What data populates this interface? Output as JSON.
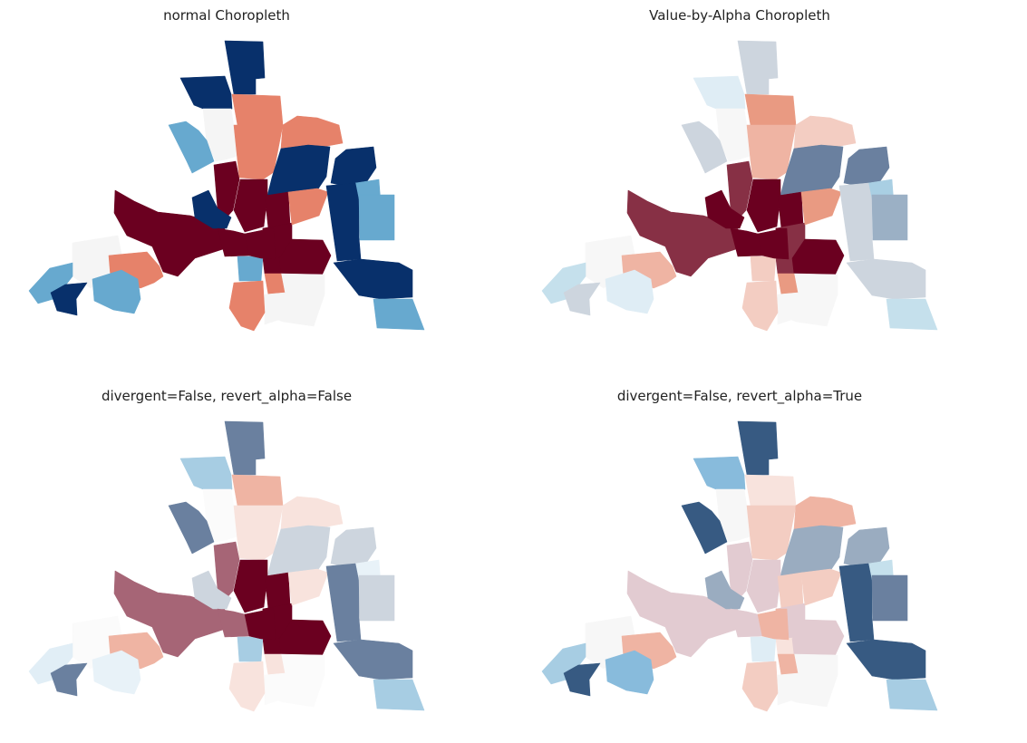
{
  "figure": {
    "panels": [
      {
        "title": "normal Choropleth",
        "colors": [
          "#08306b",
          "#08306b",
          "#f5f5f5",
          "#67a9cf",
          "#e6826a",
          "#e6826a",
          "#e6826a",
          "#08306b",
          "#08306b",
          "#67a9cf",
          "#6b0020",
          "#6b0020",
          "#6b0020",
          "#08306b",
          "#6b0020",
          "#6b0020",
          "#6b0020",
          "#e6826a",
          "#08306b",
          "#67a9cf",
          "#08306b",
          "#6b0020",
          "#6b0020",
          "#f5f5f5",
          "#e6826a",
          "#f5f5f5",
          "#67a9cf",
          "#e6826a",
          "#f5f5f5",
          "#e6826a",
          "#67a9cf",
          "#08306b",
          "#67a9cf",
          "#67a9cf",
          "#6b0020"
        ]
      },
      {
        "title": "Value-by-Alpha Choropleth",
        "colors": [
          "#cdd5de",
          "#dfedf5",
          "#f7f7f7",
          "#cdd5de",
          "#e99a82",
          "#efb4a3",
          "#f3cdc2",
          "#6a809f",
          "#6a809f",
          "#a9cfe3",
          "#873045",
          "#873045",
          "#6b0020",
          "#6b0020",
          "#6b0020",
          "#6b0020",
          "#873045",
          "#e99a82",
          "#cdd5de",
          "#9bb0c5",
          "#cdd5de",
          "#873045",
          "#6b0020",
          "#f7f7f7",
          "#e99a82",
          "#f7f7f7",
          "#f3cdc2",
          "#f3cdc2",
          "#f7f7f7",
          "#efb4a3",
          "#c5e0ec",
          "#cdd5de",
          "#dfedf5",
          "#c5e0ec",
          "#6b0020"
        ]
      },
      {
        "title": "divergent=False, revert_alpha=False",
        "colors": [
          "#6a809f",
          "#a7cde3",
          "#fbfbfb",
          "#6a809f",
          "#efb4a3",
          "#f8e3dd",
          "#f8e3dd",
          "#cdd5de",
          "#cdd5de",
          "#e8f2f8",
          "#a66576",
          "#a66576",
          "#6b0020",
          "#cdd5de",
          "#a66576",
          "#6b0020",
          "#6b0020",
          "#f8e3dd",
          "#6a809f",
          "#cdd5de",
          "#6a809f",
          "#6b0020",
          "#6b0020",
          "#fbfbfb",
          "#f8e3dd",
          "#fbfbfb",
          "#a7cde3",
          "#f8e3dd",
          "#fbfbfb",
          "#efb4a3",
          "#e1eef6",
          "#6a809f",
          "#e8f2f8",
          "#a7cde3",
          "#6b0020"
        ]
      },
      {
        "title": "divergent=False, revert_alpha=True",
        "colors": [
          "#375a82",
          "#88bbdc",
          "#f7f7f7",
          "#375a82",
          "#f8e3dd",
          "#f3cdc2",
          "#efb4a3",
          "#9aacc0",
          "#9aacc0",
          "#c5e0ec",
          "#e2cbd1",
          "#e2cbd1",
          "#e2cbd1",
          "#9aacc0",
          "#e2cbd1",
          "#f3cdc2",
          "#e2cbd1",
          "#f3cdc2",
          "#375a82",
          "#6a809f",
          "#375a82",
          "#f8e3dd",
          "#e2cbd1",
          "#f7f7f7",
          "#efb4a3",
          "#f7f7f7",
          "#dfedf5",
          "#f3cdc2",
          "#f7f7f7",
          "#efb4a3",
          "#a7cde3",
          "#375a82",
          "#88bbdc",
          "#a7cde3",
          "#efb4a3"
        ]
      }
    ]
  }
}
